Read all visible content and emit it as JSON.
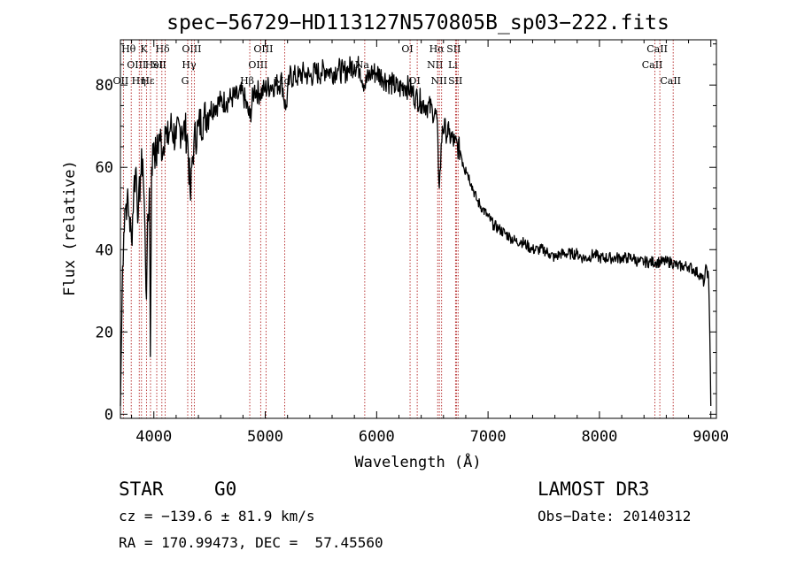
{
  "chart_data": {
    "type": "line",
    "title": "spec−56729−HD113127N570805B_sp03−222.fits",
    "xlabel": "Wavelength (Å)",
    "ylabel": "Flux (relative)",
    "xlim": [
      3700,
      9050
    ],
    "ylim": [
      -1,
      91
    ],
    "xticks": [
      4000,
      5000,
      6000,
      7000,
      8000,
      9000
    ],
    "yticks": [
      0,
      20,
      40,
      60,
      80
    ],
    "series": [
      {
        "name": "flux",
        "color": "#000000",
        "x": [
          3700,
          3710,
          3720,
          3730,
          3740,
          3760,
          3780,
          3800,
          3820,
          3840,
          3860,
          3880,
          3900,
          3920,
          3934,
          3940,
          3960,
          3969,
          3980,
          4000,
          4020,
          4050,
          4080,
          4101,
          4120,
          4150,
          4200,
          4250,
          4300,
          4330,
          4340,
          4360,
          4400,
          4450,
          4500,
          4550,
          4600,
          4650,
          4700,
          4750,
          4800,
          4861,
          4900,
          4950,
          5000,
          5050,
          5100,
          5150,
          5183,
          5220,
          5270,
          5300,
          5350,
          5400,
          5450,
          5500,
          5550,
          5600,
          5650,
          5700,
          5750,
          5800,
          5850,
          5893,
          5950,
          6000,
          6050,
          6100,
          6150,
          6200,
          6250,
          6300,
          6350,
          6400,
          6450,
          6500,
          6540,
          6563,
          6590,
          6620,
          6650,
          6700,
          6750,
          6800,
          6850,
          6900,
          6950,
          7000,
          7050,
          7100,
          7150,
          7200,
          7250,
          7300,
          7350,
          7400,
          7450,
          7500,
          7550,
          7600,
          7650,
          7700,
          7750,
          7800,
          7850,
          7900,
          7950,
          8000,
          8050,
          8100,
          8150,
          8200,
          8250,
          8300,
          8350,
          8400,
          8450,
          8500,
          8550,
          8600,
          8650,
          8700,
          8750,
          8800,
          8850,
          8900,
          8940,
          8960,
          8980,
          8990,
          9000
        ],
        "y": [
          2,
          20,
          36,
          44,
          50,
          52,
          48,
          42,
          55,
          60,
          48,
          58,
          62,
          45,
          28,
          40,
          55,
          14,
          60,
          66,
          62,
          68,
          64,
          70,
          66,
          70,
          67,
          70,
          68,
          52,
          60,
          66,
          70,
          72,
          74,
          75,
          76,
          76,
          77,
          77,
          78,
          72,
          79,
          78,
          79,
          80,
          80,
          81,
          74,
          82,
          82,
          82,
          83,
          82,
          83,
          83,
          84,
          83,
          84,
          83,
          84,
          85,
          84,
          80,
          83,
          83,
          82,
          81,
          80,
          79,
          80,
          79,
          77,
          76,
          75,
          74,
          72,
          55,
          70,
          69,
          68,
          66,
          64,
          60,
          56,
          52,
          50,
          48,
          46,
          45,
          44,
          43,
          42,
          42,
          41,
          40,
          40,
          40,
          39,
          38,
          39,
          39,
          39,
          39,
          38,
          38,
          39,
          38,
          38,
          38,
          38,
          38,
          38,
          38,
          37,
          37,
          37,
          37,
          37,
          37,
          37,
          36,
          36,
          36,
          35,
          34,
          32,
          36,
          33,
          20,
          2
        ]
      }
    ],
    "lines": [
      {
        "name": "OII",
        "wavelength": 3727,
        "row": 2
      },
      {
        "name": "Hθ",
        "wavelength": 3797,
        "row": 0
      },
      {
        "name": "OIII",
        "wavelength": 3869,
        "row": 1
      },
      {
        "name": "Hη",
        "wavelength": 3889,
        "row": 2
      },
      {
        "name": "K",
        "wavelength": 3934,
        "row": 0
      },
      {
        "name": "Hε",
        "wavelength": 3970,
        "row": 2
      },
      {
        "name": "HeI",
        "wavelength": 4026,
        "row": 1
      },
      {
        "name": "Hδ",
        "wavelength": 4102,
        "row": 0
      },
      {
        "name": "SII",
        "wavelength": 4072,
        "row": 1
      },
      {
        "name": "G",
        "wavelength": 4304,
        "row": 2
      },
      {
        "name": "OIII",
        "wavelength": 4363,
        "row": 0
      },
      {
        "name": "Hγ",
        "wavelength": 4340,
        "row": 1
      },
      {
        "name": "Hβ",
        "wavelength": 4861,
        "row": 2
      },
      {
        "name": "OIII",
        "wavelength": 4959,
        "row": 1
      },
      {
        "name": "OIII",
        "wavelength": 5007,
        "row": 0
      },
      {
        "name": "Mg",
        "wavelength": 5175,
        "row": 2
      },
      {
        "name": "Na",
        "wavelength": 5893,
        "row": 1
      },
      {
        "name": "OI",
        "wavelength": 6300,
        "row": 0
      },
      {
        "name": "OI",
        "wavelength": 6364,
        "row": 2
      },
      {
        "name": "NII",
        "wavelength": 6548,
        "row": 1
      },
      {
        "name": "Hα",
        "wavelength": 6563,
        "row": 0
      },
      {
        "name": "NII",
        "wavelength": 6583,
        "row": 2
      },
      {
        "name": "Li",
        "wavelength": 6708,
        "row": 1
      },
      {
        "name": "SII",
        "wavelength": 6716,
        "row": 0
      },
      {
        "name": "SII",
        "wavelength": 6731,
        "row": 2
      },
      {
        "name": "CaII",
        "wavelength": 8498,
        "row": 1
      },
      {
        "name": "CaII",
        "wavelength": 8542,
        "row": 0
      },
      {
        "name": "CaII",
        "wavelength": 8662,
        "row": 2
      }
    ]
  },
  "info": {
    "class": "STAR",
    "subclass": "G0",
    "survey": "LAMOST DR3",
    "cz": "cz = −139.6 ± 81.9 km/s",
    "obs_date": "Obs−Date: 20140312",
    "radec": "RA = 170.99473, DEC =  57.45560"
  }
}
